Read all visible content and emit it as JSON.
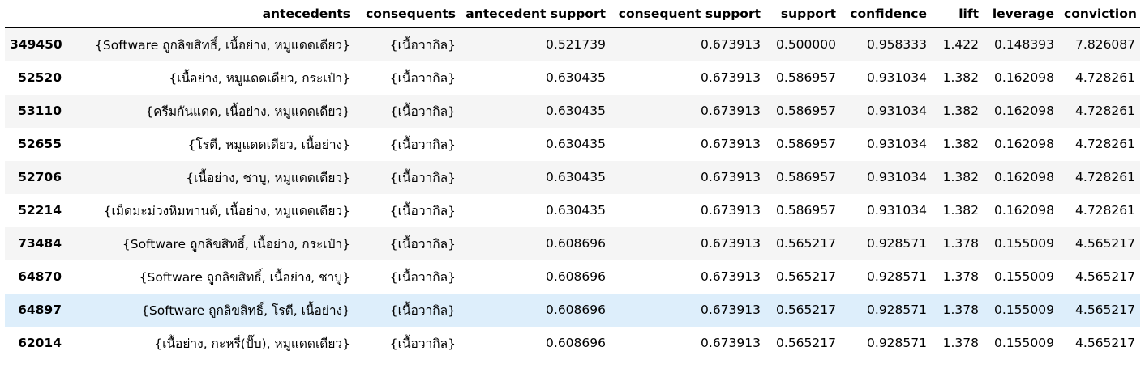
{
  "table": {
    "columns": [
      "antecedents",
      "consequents",
      "antecedent support",
      "consequent support",
      "support",
      "confidence",
      "lift",
      "leverage",
      "conviction"
    ],
    "rows": [
      {
        "index": "349450",
        "antecedents": "{Software ถูกลิขสิทธิ์, เนื้อย่าง, หมูแดดเดียว}",
        "consequents": "{เนื้อวากิล}",
        "antecedent_support": "0.521739",
        "consequent_support": "0.673913",
        "support": "0.500000",
        "confidence": "0.958333",
        "lift": "1.422",
        "leverage": "0.148393",
        "conviction": "7.826087"
      },
      {
        "index": "52520",
        "antecedents": "{เนื้อย่าง, หมูแดดเดียว, กระเป๋า}",
        "consequents": "{เนื้อวากิล}",
        "antecedent_support": "0.630435",
        "consequent_support": "0.673913",
        "support": "0.586957",
        "confidence": "0.931034",
        "lift": "1.382",
        "leverage": "0.162098",
        "conviction": "4.728261"
      },
      {
        "index": "53110",
        "antecedents": "{ครีมกันแดด, เนื้อย่าง, หมูแดดเดียว}",
        "consequents": "{เนื้อวากิล}",
        "antecedent_support": "0.630435",
        "consequent_support": "0.673913",
        "support": "0.586957",
        "confidence": "0.931034",
        "lift": "1.382",
        "leverage": "0.162098",
        "conviction": "4.728261"
      },
      {
        "index": "52655",
        "antecedents": "{โรตี, หมูแดดเดียว, เนื้อย่าง}",
        "consequents": "{เนื้อวากิล}",
        "antecedent_support": "0.630435",
        "consequent_support": "0.673913",
        "support": "0.586957",
        "confidence": "0.931034",
        "lift": "1.382",
        "leverage": "0.162098",
        "conviction": "4.728261"
      },
      {
        "index": "52706",
        "antecedents": "{เนื้อย่าง, ชาบู, หมูแดดเดียว}",
        "consequents": "{เนื้อวากิล}",
        "antecedent_support": "0.630435",
        "consequent_support": "0.673913",
        "support": "0.586957",
        "confidence": "0.931034",
        "lift": "1.382",
        "leverage": "0.162098",
        "conviction": "4.728261"
      },
      {
        "index": "52214",
        "antecedents": "{เม็ดมะม่วงหิมพานต์, เนื้อย่าง, หมูแดดเดียว}",
        "consequents": "{เนื้อวากิล}",
        "antecedent_support": "0.630435",
        "consequent_support": "0.673913",
        "support": "0.586957",
        "confidence": "0.931034",
        "lift": "1.382",
        "leverage": "0.162098",
        "conviction": "4.728261"
      },
      {
        "index": "73484",
        "antecedents": "{Software ถูกลิขสิทธิ์, เนื้อย่าง, กระเป๋า}",
        "consequents": "{เนื้อวากิล}",
        "antecedent_support": "0.608696",
        "consequent_support": "0.673913",
        "support": "0.565217",
        "confidence": "0.928571",
        "lift": "1.378",
        "leverage": "0.155009",
        "conviction": "4.565217"
      },
      {
        "index": "64870",
        "antecedents": "{Software ถูกลิขสิทธิ์, เนื้อย่าง, ชาบู}",
        "consequents": "{เนื้อวากิล}",
        "antecedent_support": "0.608696",
        "consequent_support": "0.673913",
        "support": "0.565217",
        "confidence": "0.928571",
        "lift": "1.378",
        "leverage": "0.155009",
        "conviction": "4.565217"
      },
      {
        "index": "64897",
        "antecedents": "{Software ถูกลิขสิทธิ์, โรตี, เนื้อย่าง}",
        "consequents": "{เนื้อวากิล}",
        "antecedent_support": "0.608696",
        "consequent_support": "0.673913",
        "support": "0.565217",
        "confidence": "0.928571",
        "lift": "1.378",
        "leverage": "0.155009",
        "conviction": "4.565217"
      },
      {
        "index": "62014",
        "antecedents": "{เนื้อย่าง, กะหรี่(ปั๊บ), หมูแดดเดียว}",
        "consequents": "{เนื้อวากิล}",
        "antecedent_support": "0.608696",
        "consequent_support": "0.673913",
        "support": "0.565217",
        "confidence": "0.928571",
        "lift": "1.378",
        "leverage": "0.155009",
        "conviction": "4.565217"
      }
    ],
    "highlighted_row_index": "64897"
  }
}
